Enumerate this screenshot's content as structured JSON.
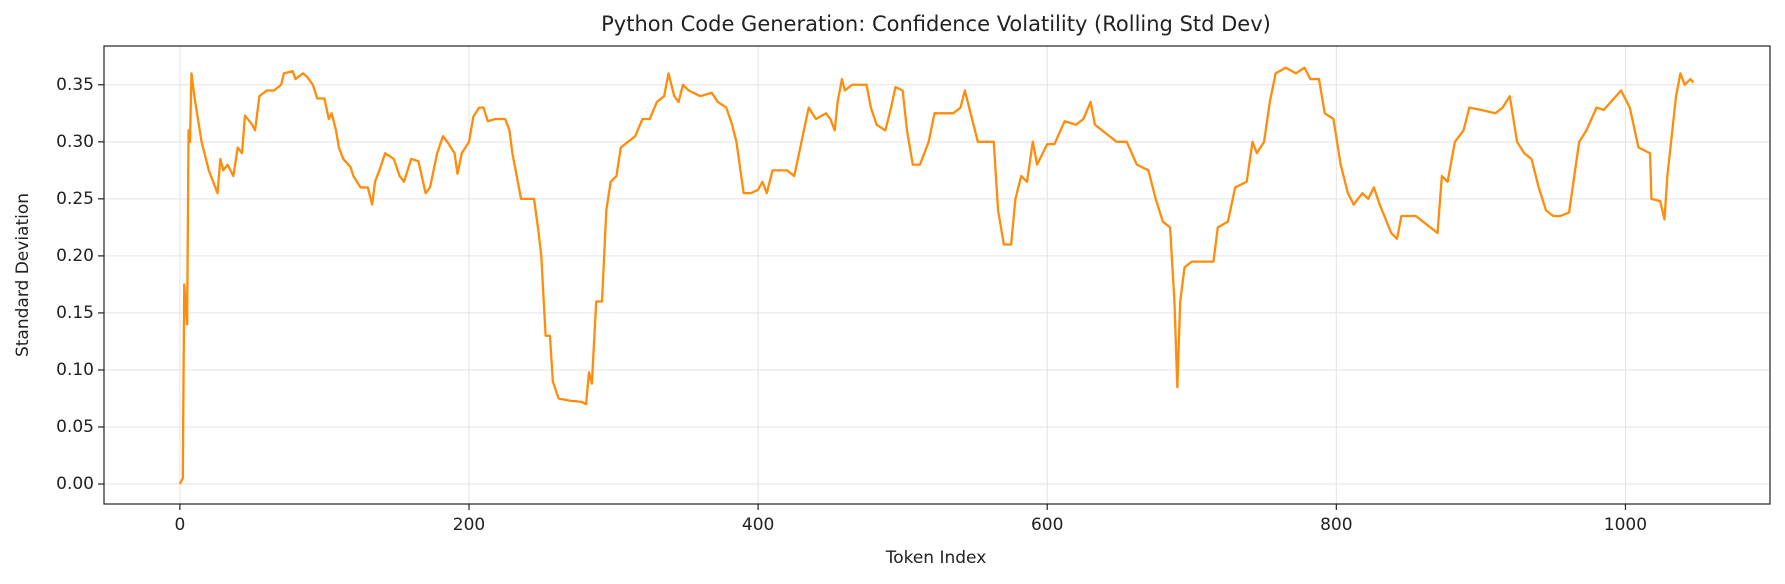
{
  "chart_data": {
    "type": "line",
    "title": "Python Code Generation: Confidence Volatility (Rolling Std Dev)",
    "x_label": "Token Index",
    "y_label": "Standard Deviation",
    "x": [
      0,
      2,
      3,
      5,
      6,
      7,
      8,
      10,
      15,
      20,
      26,
      28,
      30,
      33,
      37,
      40,
      43,
      45,
      50,
      52,
      55,
      60,
      65,
      70,
      72,
      78,
      80,
      85,
      88,
      92,
      95,
      100,
      103,
      105,
      108,
      110,
      113,
      118,
      120,
      125,
      130,
      133,
      135,
      138,
      142,
      148,
      152,
      155,
      160,
      165,
      170,
      173,
      178,
      182,
      185,
      190,
      192,
      195,
      200,
      203,
      207,
      210,
      213,
      218,
      225,
      228,
      230,
      233,
      236,
      245,
      248,
      250,
      253,
      256,
      258,
      262,
      270,
      278,
      281,
      283,
      285,
      288,
      292,
      295,
      298,
      302,
      305,
      310,
      315,
      320,
      325,
      330,
      335,
      338,
      342,
      345,
      348,
      352,
      360,
      368,
      372,
      378,
      382,
      385,
      390,
      395,
      400,
      403,
      406,
      410,
      420,
      425,
      430,
      435,
      440,
      447,
      450,
      453,
      455,
      458,
      460,
      465,
      475,
      478,
      482,
      488,
      492,
      495,
      500,
      503,
      507,
      512,
      518,
      522,
      535,
      540,
      543,
      547,
      552,
      560,
      563,
      566,
      570,
      575,
      578,
      582,
      586,
      590,
      593,
      600,
      605,
      612,
      620,
      625,
      630,
      633,
      638,
      643,
      648,
      655,
      662,
      670,
      675,
      680,
      685,
      688,
      690,
      692,
      695,
      700,
      705,
      715,
      718,
      725,
      730,
      738,
      742,
      745,
      750,
      754,
      758,
      765,
      772,
      778,
      782,
      788,
      792,
      798,
      803,
      808,
      812,
      818,
      822,
      826,
      830,
      838,
      842,
      845,
      855,
      860,
      865,
      870,
      873,
      877,
      882,
      888,
      892,
      900,
      910,
      915,
      920,
      925,
      930,
      935,
      940,
      945,
      950,
      955,
      961,
      968,
      973,
      980,
      985,
      997,
      1003,
      1009,
      1017,
      1018,
      1024,
      1027,
      1029,
      1035,
      1038,
      1041,
      1045,
      1047
    ],
    "series": [
      {
        "name": "Rolling Std Dev",
        "color": "#ff8c0a",
        "values": [
          0.0,
          0.005,
          0.175,
          0.14,
          0.31,
          0.3,
          0.36,
          0.34,
          0.3,
          0.275,
          0.255,
          0.285,
          0.275,
          0.28,
          0.27,
          0.295,
          0.29,
          0.323,
          0.315,
          0.31,
          0.34,
          0.345,
          0.345,
          0.35,
          0.36,
          0.362,
          0.355,
          0.36,
          0.357,
          0.35,
          0.338,
          0.338,
          0.32,
          0.325,
          0.31,
          0.295,
          0.285,
          0.278,
          0.27,
          0.26,
          0.26,
          0.245,
          0.265,
          0.275,
          0.29,
          0.285,
          0.27,
          0.265,
          0.285,
          0.283,
          0.255,
          0.26,
          0.29,
          0.305,
          0.3,
          0.29,
          0.272,
          0.29,
          0.3,
          0.322,
          0.33,
          0.33,
          0.318,
          0.32,
          0.32,
          0.31,
          0.29,
          0.27,
          0.25,
          0.25,
          0.222,
          0.2,
          0.13,
          0.13,
          0.09,
          0.075,
          0.073,
          0.072,
          0.07,
          0.098,
          0.088,
          0.16,
          0.16,
          0.24,
          0.265,
          0.27,
          0.295,
          0.3,
          0.305,
          0.32,
          0.32,
          0.335,
          0.34,
          0.36,
          0.34,
          0.335,
          0.35,
          0.345,
          0.34,
          0.343,
          0.335,
          0.33,
          0.315,
          0.3,
          0.255,
          0.255,
          0.258,
          0.265,
          0.255,
          0.275,
          0.275,
          0.27,
          0.3,
          0.33,
          0.32,
          0.325,
          0.32,
          0.31,
          0.335,
          0.355,
          0.345,
          0.35,
          0.35,
          0.33,
          0.315,
          0.31,
          0.33,
          0.348,
          0.345,
          0.31,
          0.28,
          0.28,
          0.3,
          0.325,
          0.325,
          0.33,
          0.345,
          0.325,
          0.3,
          0.3,
          0.3,
          0.24,
          0.21,
          0.21,
          0.25,
          0.27,
          0.265,
          0.3,
          0.28,
          0.298,
          0.298,
          0.318,
          0.315,
          0.32,
          0.335,
          0.315,
          0.31,
          0.305,
          0.3,
          0.3,
          0.28,
          0.275,
          0.25,
          0.23,
          0.225,
          0.16,
          0.085,
          0.16,
          0.19,
          0.195,
          0.195,
          0.195,
          0.225,
          0.23,
          0.26,
          0.265,
          0.3,
          0.29,
          0.3,
          0.335,
          0.36,
          0.365,
          0.36,
          0.365,
          0.355,
          0.355,
          0.325,
          0.32,
          0.28,
          0.255,
          0.245,
          0.255,
          0.25,
          0.26,
          0.245,
          0.22,
          0.215,
          0.235,
          0.235,
          0.23,
          0.225,
          0.22,
          0.27,
          0.265,
          0.3,
          0.31,
          0.33,
          0.328,
          0.325,
          0.33,
          0.34,
          0.3,
          0.29,
          0.285,
          0.26,
          0.24,
          0.235,
          0.235,
          0.238,
          0.3,
          0.31,
          0.33,
          0.328,
          0.345,
          0.33,
          0.295,
          0.29,
          0.25,
          0.248,
          0.232,
          0.27,
          0.34,
          0.36,
          0.35,
          0.355,
          0.352
        ]
      }
    ],
    "xlim": [
      -52.5,
      1100
    ],
    "ylim": [
      -0.0175,
      0.384
    ],
    "xticks": [
      0,
      200,
      400,
      600,
      800,
      1000
    ],
    "yticks": [
      {
        "value": 0,
        "label": "0.00"
      },
      0.05,
      {
        "value": 0.1,
        "label": "0.10"
      },
      0.15,
      {
        "value": 0.2,
        "label": "0.20"
      },
      0.25,
      {
        "value": 0.3,
        "label": "0.30"
      },
      0.35
    ],
    "grid": true
  }
}
